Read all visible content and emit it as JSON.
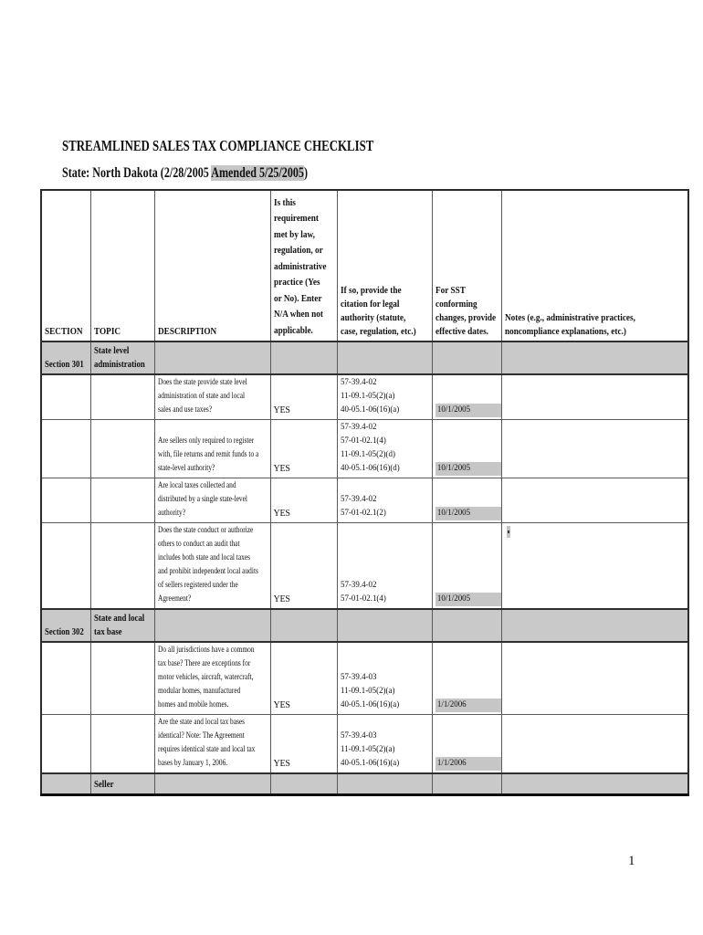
{
  "document": {
    "title": "STREAMLINED SALES TAX COMPLIANCE CHECKLIST",
    "state_line": {
      "prefix": "State:  North Dakota (2/28/2005 ",
      "highlighted": "Amended 5/25/2005",
      "suffix": ")"
    },
    "page_number": "1"
  },
  "colors": {
    "page_bg": "#ffffff",
    "section_row_bg": "#c9c9c9",
    "highlight_bg": "#c6c6c6",
    "table_border": "#595959",
    "outer_border": "#2b2b2b",
    "text": "#111111"
  },
  "table": {
    "headers": [
      "SECTION",
      "TOPIC",
      "DESCRIPTION",
      "Is this\nrequirement\nmet by law,\nregulation, or\nadministrative\npractice (Yes\nor No).  Enter\nN/A when not\napplicable.",
      "If so, provide the\ncitation for legal\nauthority (statute,\ncase, regulation, etc.)",
      "For SST\nconforming\nchanges, provide\neffective dates.",
      "Notes (e.g., administrative practices,\nnoncompliance explanations, etc.)"
    ],
    "rows": [
      {
        "type": "section",
        "section": "Section 301",
        "topic": "State level\nadministration"
      },
      {
        "type": "item",
        "description": "Does the state provide state level\nadministration of state and local\nsales and use taxes?",
        "answer": "YES",
        "citations": "57-39.4-02\n11-09.1-05(2)(a)\n40-05.1-06(16)(a)",
        "date": "10/1/2005",
        "notes": ""
      },
      {
        "type": "item",
        "description": "Are sellers only required to register\nwith, file returns and remit funds to a\nstate-level authority?",
        "answer": "YES",
        "citations": "57-39.4-02\n57-01-02.1(4)\n11-09.1-05(2)(d)\n40-05.1-06(16)(d)",
        "date": "10/1/2005",
        "notes": ""
      },
      {
        "type": "item",
        "description": "Are local taxes collected and\ndistributed by a single state-level\nauthority?",
        "answer": "YES",
        "citations": "57-39.4-02\n57-01-02.1(2)",
        "date": "10/1/2005",
        "notes": ""
      },
      {
        "type": "item",
        "description": "Does the state conduct or authorize\nothers to conduct an audit that\nincludes both state and local taxes\nand prohibit independent local audits\nof sellers registered under the\nAgreement?",
        "answer": "YES",
        "citations": "57-39.4-02\n57-01-02.1(4)",
        "date": "10/1/2005",
        "notes": ""
      },
      {
        "type": "section",
        "section": "Section 302",
        "topic": "State and local\ntax base"
      },
      {
        "type": "item",
        "description": "Do all jurisdictions have a common\ntax base?  There are exceptions for\nmotor vehicles, aircraft, watercraft,\nmodular homes, manufactured\nhomes and mobile homes.",
        "answer": "YES",
        "citations": "57-39.4-03\n11-09.1-05(2)(a)\n40-05.1-06(16)(a)",
        "date": "1/1/2006",
        "notes": ""
      },
      {
        "type": "item",
        "description": "Are the state and local tax bases\nidentical? Note:  The Agreement\nrequires identical state and local tax\nbases by January 1, 2006.",
        "answer": "YES",
        "citations": "57-39.4-03\n11-09.1-05(2)(a)\n40-05.1-06(16)(a)",
        "date": "1/1/2006",
        "notes": ""
      },
      {
        "type": "section",
        "section": "",
        "topic": "Seller"
      }
    ]
  }
}
